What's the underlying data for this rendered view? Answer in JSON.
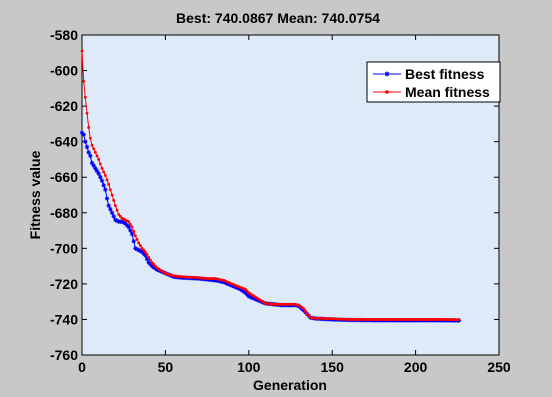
{
  "chart_data": {
    "type": "line",
    "title": "Best: 740.0867 Mean: 740.0754",
    "xlabel": "Generation",
    "ylabel": "Fitness value",
    "xlim": [
      0,
      250
    ],
    "ylim": [
      -760,
      -580
    ],
    "xticks": [
      0,
      50,
      100,
      150,
      200,
      250
    ],
    "yticks": [
      -760,
      -740,
      -720,
      -700,
      -680,
      -660,
      -640,
      -620,
      -600,
      -580
    ],
    "grid": false,
    "legend_position": "top-right",
    "colors": {
      "plot_bg": "#dfeaf8",
      "figure_bg": "#c8c8c8"
    },
    "series": [
      {
        "name": "Best fitness",
        "color": "#0000ff",
        "marker": "star",
        "points": [
          [
            0,
            -635
          ],
          [
            1,
            -636
          ],
          [
            2,
            -640
          ],
          [
            3,
            -643
          ],
          [
            4,
            -646
          ],
          [
            5,
            -648
          ],
          [
            6,
            -652
          ],
          [
            8,
            -655
          ],
          [
            10,
            -658
          ],
          [
            12,
            -662
          ],
          [
            14,
            -667
          ],
          [
            15,
            -672
          ],
          [
            16,
            -676
          ],
          [
            18,
            -680
          ],
          [
            20,
            -684
          ],
          [
            22,
            -685
          ],
          [
            24,
            -685
          ],
          [
            26,
            -686
          ],
          [
            28,
            -688
          ],
          [
            30,
            -692
          ],
          [
            32,
            -700
          ],
          [
            34,
            -701
          ],
          [
            36,
            -702
          ],
          [
            38,
            -704
          ],
          [
            40,
            -708
          ],
          [
            42,
            -710
          ],
          [
            45,
            -712
          ],
          [
            50,
            -714
          ],
          [
            55,
            -716
          ],
          [
            60,
            -716.5
          ],
          [
            70,
            -717
          ],
          [
            75,
            -717.5
          ],
          [
            80,
            -718
          ],
          [
            85,
            -719
          ],
          [
            90,
            -721
          ],
          [
            95,
            -723
          ],
          [
            98,
            -725
          ],
          [
            100,
            -727
          ],
          [
            105,
            -729
          ],
          [
            110,
            -731
          ],
          [
            115,
            -731.5
          ],
          [
            120,
            -732
          ],
          [
            128,
            -732
          ],
          [
            130,
            -732.5
          ],
          [
            133,
            -735
          ],
          [
            135,
            -737
          ],
          [
            137,
            -739
          ],
          [
            140,
            -739.5
          ],
          [
            150,
            -740
          ],
          [
            160,
            -740.3
          ],
          [
            180,
            -740.5
          ],
          [
            200,
            -740.5
          ],
          [
            215,
            -740.5
          ],
          [
            226,
            -740.6
          ]
        ]
      },
      {
        "name": "Mean fitness",
        "color": "#ff0000",
        "marker": "dot",
        "points": [
          [
            0,
            -589
          ],
          [
            1,
            -606
          ],
          [
            2,
            -615
          ],
          [
            3,
            -624
          ],
          [
            4,
            -632
          ],
          [
            5,
            -638
          ],
          [
            6,
            -642
          ],
          [
            8,
            -646
          ],
          [
            10,
            -650
          ],
          [
            12,
            -655
          ],
          [
            14,
            -659
          ],
          [
            16,
            -664
          ],
          [
            18,
            -670
          ],
          [
            20,
            -676
          ],
          [
            22,
            -681
          ],
          [
            24,
            -683
          ],
          [
            26,
            -684
          ],
          [
            28,
            -685
          ],
          [
            30,
            -688
          ],
          [
            32,
            -693
          ],
          [
            34,
            -697
          ],
          [
            36,
            -700
          ],
          [
            38,
            -702
          ],
          [
            40,
            -705
          ],
          [
            42,
            -708
          ],
          [
            45,
            -711
          ],
          [
            50,
            -714
          ],
          [
            55,
            -715.5
          ],
          [
            60,
            -716
          ],
          [
            70,
            -716.5
          ],
          [
            75,
            -717
          ],
          [
            80,
            -717
          ],
          [
            85,
            -718
          ],
          [
            90,
            -720
          ],
          [
            95,
            -722
          ],
          [
            98,
            -723
          ],
          [
            100,
            -725
          ],
          [
            105,
            -728
          ],
          [
            110,
            -731
          ],
          [
            115,
            -731.5
          ],
          [
            120,
            -731.5
          ],
          [
            128,
            -731.5
          ],
          [
            130,
            -732
          ],
          [
            133,
            -734
          ],
          [
            135,
            -737
          ],
          [
            137,
            -739
          ],
          [
            140,
            -739.3
          ],
          [
            150,
            -739.6
          ],
          [
            160,
            -740
          ],
          [
            180,
            -740
          ],
          [
            200,
            -740
          ],
          [
            215,
            -740
          ],
          [
            226,
            -740.1
          ]
        ]
      }
    ]
  }
}
